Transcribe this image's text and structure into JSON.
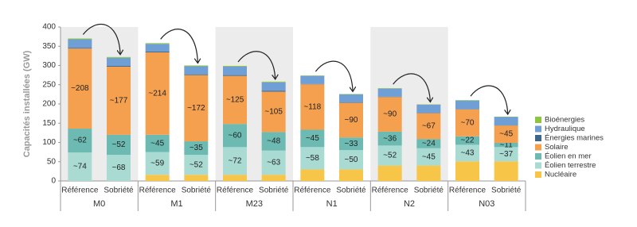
{
  "chart_data": {
    "type": "stacked_bar",
    "y_label": "Capacités installées (GW)",
    "groups": [
      "M0",
      "M1",
      "M23",
      "N1",
      "N2",
      "N03"
    ],
    "categories": [
      "Référence",
      "Sobriété",
      "Référence",
      "Sobriété",
      "Référence",
      "Sobriété",
      "Référence",
      "Sobriété",
      "Référence",
      "Sobriété",
      "Référence",
      "Sobriété"
    ],
    "ylim": [
      0,
      400
    ],
    "yticks": [
      0,
      50,
      100,
      150,
      200,
      250,
      300,
      350,
      400
    ],
    "series": [
      {
        "name": "Nucléaire",
        "color": "#f7c548",
        "values": [
          0,
          0,
          16,
          16,
          16,
          16,
          30,
          30,
          40,
          40,
          51,
          51
        ]
      },
      {
        "name": "Éolien terrestre",
        "color": "#a9dbd3",
        "values": [
          74,
          68,
          59,
          52,
          72,
          63,
          58,
          50,
          52,
          45,
          43,
          37
        ],
        "value_labels": [
          "~74",
          "~68",
          "~59",
          "~52",
          "~72",
          "~63",
          "~58",
          "~50",
          "~52",
          "~45",
          "~43",
          "~37"
        ]
      },
      {
        "name": "Éolien en mer",
        "color": "#6cbab2",
        "values": [
          62,
          52,
          45,
          35,
          60,
          48,
          45,
          33,
          36,
          24,
          22,
          11
        ],
        "value_labels": [
          "~62",
          "~52",
          "~45",
          "~35",
          "~60",
          "~48",
          "~45",
          "~33",
          "~36",
          "~24",
          "~22",
          "~11"
        ]
      },
      {
        "name": "Solaire",
        "color": "#f5a04f",
        "values": [
          208,
          177,
          214,
          172,
          125,
          105,
          118,
          90,
          90,
          67,
          70,
          45
        ],
        "value_labels": [
          "~208",
          "~177",
          "~214",
          "~172",
          "~125",
          "~105",
          "~118",
          "~90",
          "~90",
          "~67",
          "~70",
          "~45"
        ]
      },
      {
        "name": "Énergies marines",
        "color": "#3d6689",
        "values": [
          2,
          2,
          2,
          2,
          2,
          2,
          1,
          1,
          1,
          1,
          1,
          1
        ]
      },
      {
        "name": "Hydraulique",
        "color": "#6f9fd4",
        "values": [
          22,
          21,
          20,
          21,
          22,
          22,
          21,
          21,
          21,
          21,
          22,
          21
        ]
      },
      {
        "name": "Bioénergies",
        "color": "#8cc63f",
        "values": [
          2,
          2,
          2,
          2,
          2,
          2,
          1,
          1,
          1,
          1,
          1,
          1
        ]
      }
    ]
  }
}
